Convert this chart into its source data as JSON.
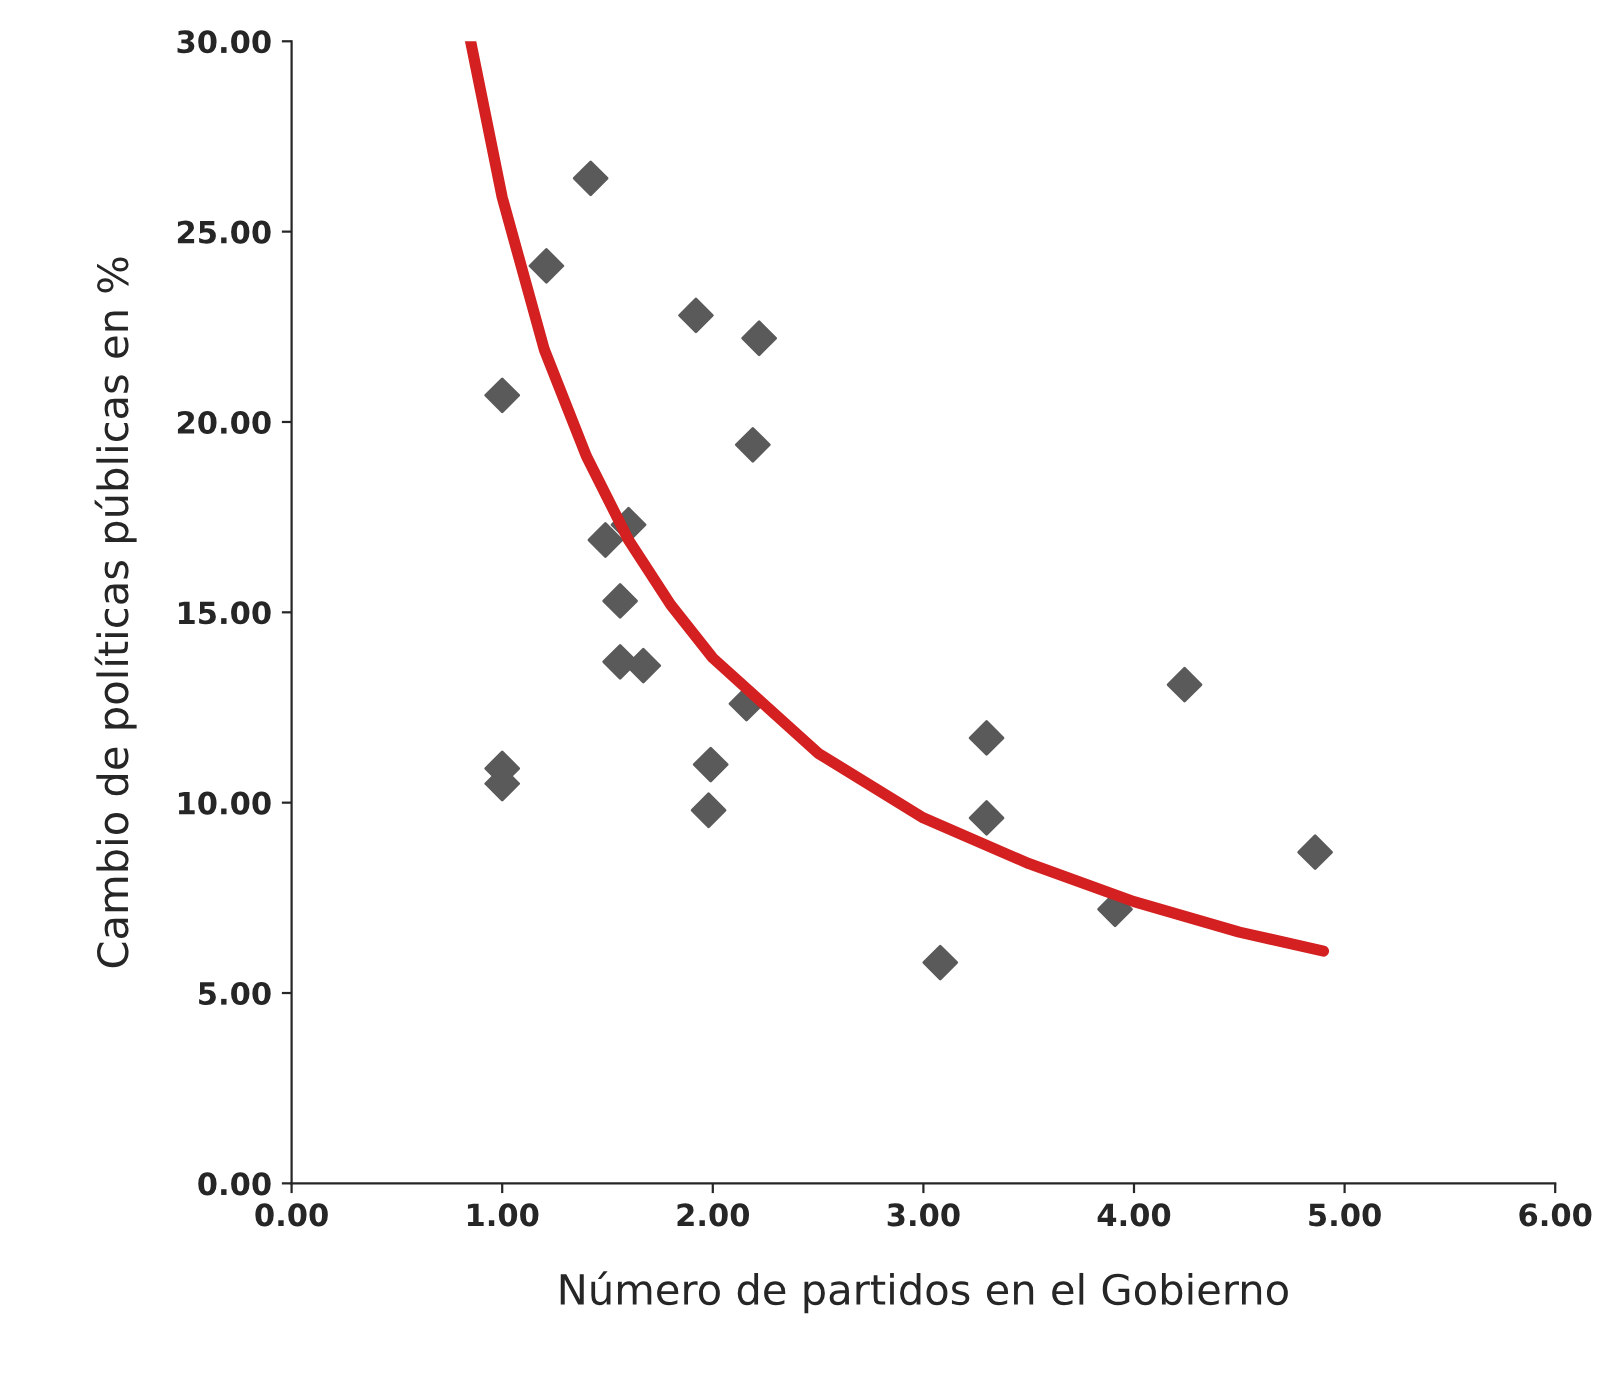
{
  "chart_data": {
    "type": "scatter",
    "xlabel": "Número de partidos en el Gobierno",
    "ylabel": "Cambio de políticas públicas en %",
    "series": [
      {
        "color": "#5a5a5a",
        "marker": "diamond",
        "x": [
          1.42,
          1.21,
          1.0,
          1.92,
          2.22,
          2.19,
          1.49,
          1.6,
          1.56,
          1.56,
          1.67,
          2.16,
          1.0,
          1.0,
          1.99,
          1.98,
          3.3,
          3.3,
          3.08,
          3.91,
          4.24,
          4.86
        ],
        "values": [
          26.4,
          24.1,
          20.7,
          22.8,
          22.2,
          19.4,
          16.9,
          17.3,
          15.3,
          13.7,
          13.6,
          12.6,
          10.9,
          10.5,
          11.0,
          9.8,
          11.7,
          9.6,
          5.8,
          7.2,
          13.1,
          8.7
        ]
      },
      {
        "type": "line",
        "color": "#d42020",
        "marker": "none",
        "line_style": "solid",
        "x": [
          0.85,
          1.0,
          1.2,
          1.4,
          1.6,
          1.8,
          2.0,
          2.5,
          3.0,
          3.5,
          4.0,
          4.5,
          4.9
        ],
        "values": [
          30.0,
          25.9,
          21.9,
          19.1,
          16.9,
          15.2,
          13.8,
          11.3,
          9.6,
          8.4,
          7.4,
          6.6,
          6.1
        ]
      }
    ],
    "xlim": [
      0,
      6
    ],
    "ylim": [
      0,
      30
    ],
    "xticks": [
      {
        "value": 0,
        "label": "0.00"
      },
      {
        "value": 1,
        "label": "1.00"
      },
      {
        "value": 2,
        "label": "2.00"
      },
      {
        "value": 3,
        "label": "3.00"
      },
      {
        "value": 4,
        "label": "4.00"
      },
      {
        "value": 5,
        "label": "5.00"
      },
      {
        "value": 6,
        "label": "6.00"
      }
    ],
    "yticks": [
      {
        "value": 0,
        "label": "0.00"
      },
      {
        "value": 5,
        "label": "5.00"
      },
      {
        "value": 10,
        "label": "10.00"
      },
      {
        "value": 15,
        "label": "15.00"
      },
      {
        "value": 20,
        "label": "20.00"
      },
      {
        "value": 25,
        "label": "25.00"
      },
      {
        "value": 30,
        "label": "30.00"
      }
    ],
    "grid": false,
    "legend": false
  }
}
